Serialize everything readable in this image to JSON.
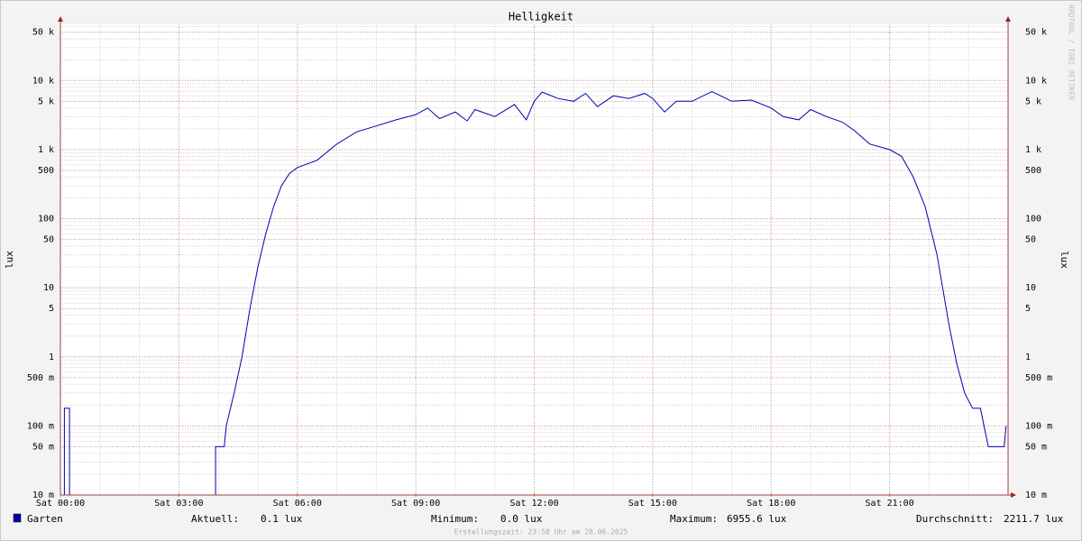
{
  "chart_data": {
    "type": "line",
    "title": "Helligkeit",
    "y_label": "lux",
    "y2_label": "lux",
    "log_scale": true,
    "grid": true,
    "xlim": [
      0,
      24
    ],
    "ylim": [
      0.01,
      65000
    ],
    "xticks": [
      {
        "value": 0,
        "label": "Sat 00:00"
      },
      {
        "value": 3,
        "label": "Sat 03:00"
      },
      {
        "value": 6,
        "label": "Sat 06:00"
      },
      {
        "value": 9,
        "label": "Sat 09:00"
      },
      {
        "value": 12,
        "label": "Sat 12:00"
      },
      {
        "value": 15,
        "label": "Sat 15:00"
      },
      {
        "value": 18,
        "label": "Sat 18:00"
      },
      {
        "value": 21,
        "label": "Sat 21:00"
      }
    ],
    "yticks": [
      {
        "value": 50000,
        "label": "50 k"
      },
      {
        "value": 10000,
        "label": "10 k"
      },
      {
        "value": 5000,
        "label": "5 k"
      },
      {
        "value": 1000,
        "label": "1 k"
      },
      500,
      100,
      50,
      10,
      5,
      1,
      {
        "value": 0.5,
        "label": "500 m"
      },
      {
        "value": 0.1,
        "label": "100 m"
      },
      {
        "value": 0.05,
        "label": "50 m"
      },
      {
        "value": 0.01,
        "label": "10 m"
      }
    ],
    "series": [
      {
        "name": "Garten",
        "color": "#0000b0",
        "x": [
          0,
          0.1,
          0.1,
          0.23,
          0.23,
          3.93,
          3.93,
          4.15,
          4.2,
          4.4,
          4.6,
          4.8,
          5.0,
          5.2,
          5.4,
          5.6,
          5.8,
          6.0,
          6.5,
          7.0,
          7.5,
          8.0,
          8.5,
          9.0,
          9.3,
          9.6,
          10.0,
          10.3,
          10.5,
          11.0,
          11.5,
          11.8,
          12.0,
          12.2,
          12.6,
          13.0,
          13.3,
          13.6,
          14.0,
          14.4,
          14.8,
          15.0,
          15.3,
          15.6,
          16.0,
          16.5,
          17.0,
          17.5,
          18.0,
          18.3,
          18.7,
          19.0,
          19.4,
          19.8,
          20.1,
          20.5,
          21.0,
          21.3,
          21.6,
          21.9,
          22.2,
          22.5,
          22.7,
          22.9,
          23.1,
          23.3,
          23.5,
          23.9,
          23.95
        ],
        "values": [
          0.01,
          0.01,
          0.18,
          0.18,
          0.01,
          0.01,
          0.05,
          0.05,
          0.1,
          0.3,
          1,
          5,
          20,
          60,
          150,
          300,
          450,
          550,
          700,
          1200,
          1800,
          2200,
          2700,
          3200,
          4000,
          2800,
          3500,
          2600,
          3800,
          3000,
          4500,
          2700,
          5000,
          6800,
          5500,
          5000,
          6500,
          4200,
          6000,
          5500,
          6500,
          5500,
          3500,
          5000,
          5000,
          6900,
          5000,
          5200,
          4000,
          3000,
          2700,
          3800,
          3000,
          2500,
          1900,
          1200,
          1000,
          800,
          400,
          150,
          30,
          3,
          0.8,
          0.3,
          0.18,
          0.18,
          0.05,
          0.05,
          0.1
        ]
      }
    ],
    "legend": {
      "stats": [
        {
          "label": "Aktuell:",
          "value": "0.1 lux"
        },
        {
          "label": "Minimum:",
          "value": "0.0 lux"
        },
        {
          "label": "Maximum:",
          "value": "6955.6 lux"
        },
        {
          "label": "Durchschnitt:",
          "value": "2211.7 lux"
        }
      ]
    },
    "footer": "Erstellungszeit: 23:58 Uhr am 28.06.2025",
    "watermark": "RRDTOOL / TOBI OETIKER"
  }
}
